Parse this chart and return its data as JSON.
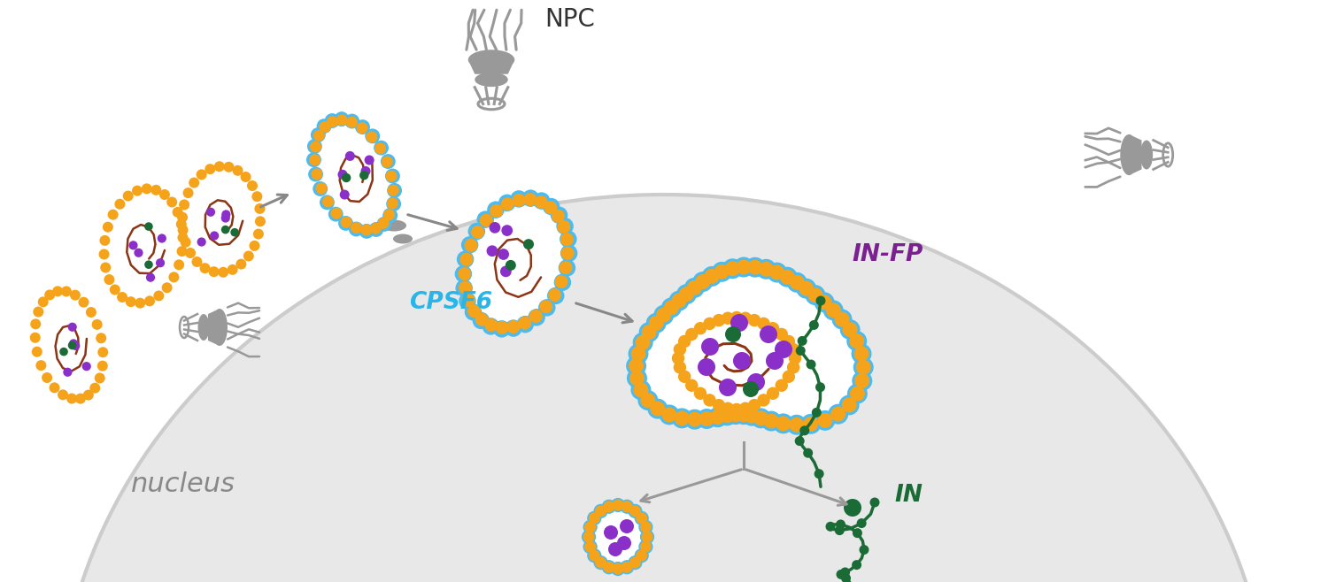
{
  "bg_color": "#ffffff",
  "nucleus_fill": "#e8e8e8",
  "nucleus_border": "#cccccc",
  "orange": "#F5A31A",
  "purple": "#8B2FC9",
  "dark_green": "#1A6B35",
  "brown": "#8B3515",
  "blue": "#4DBBEE",
  "gray": "#999999",
  "cpsf6_color": "#29B5E8",
  "infp_color": "#7B2090",
  "in_color": "#1A6B35",
  "npc_text": "#333333",
  "nucleus_text": "#888888",
  "arrow_color": "#888888",
  "labels": {
    "NPC": "NPC",
    "CPSF6": "CPSF6",
    "IN_FP": "IN-FP",
    "IN": "IN",
    "nucleus": "nucleus"
  }
}
